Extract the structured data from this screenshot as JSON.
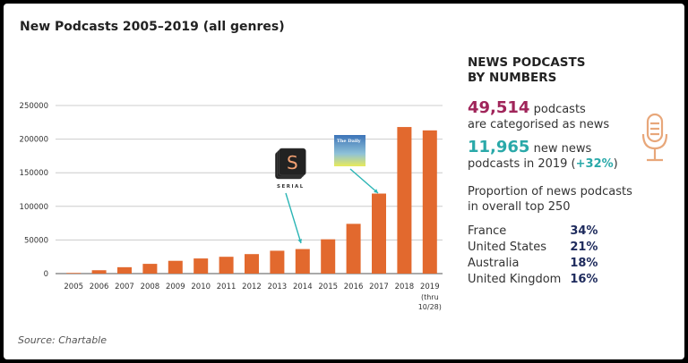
{
  "title": "New Podcasts 2005–2019 (all genres)",
  "source": "Source: Chartable",
  "colors": {
    "bar": "#e2692e",
    "arrow": "#2bb5b5",
    "magenta": "#a0255a",
    "teal": "#2aa9a9",
    "navy": "#1d2a5c",
    "mic": "#e8a77a"
  },
  "chart_data": {
    "type": "bar",
    "title": "New Podcasts 2005–2019 (all genres)",
    "categories": [
      "2005",
      "2006",
      "2007",
      "2008",
      "2009",
      "2010",
      "2011",
      "2012",
      "2013",
      "2014",
      "2015",
      "2016",
      "2017",
      "2018",
      "2019"
    ],
    "category_sublabels": {
      "2019": [
        "(thru",
        "10/28)"
      ]
    },
    "values": [
      1000,
      5000,
      9500,
      14500,
      19000,
      22500,
      25000,
      29000,
      34000,
      36500,
      51000,
      74000,
      119000,
      218000,
      213000
    ],
    "ylim": [
      0,
      250000
    ],
    "yticks": [
      0,
      50000,
      100000,
      150000,
      200000,
      250000
    ],
    "ytick_labels": [
      "0",
      "50000",
      "100000",
      "150000",
      "200000",
      "250000"
    ],
    "grid": true,
    "annotations": [
      {
        "label": "SERIAL",
        "logo_letter": "S",
        "points_to": "2014"
      },
      {
        "label": "The Daily",
        "points_to": "2017"
      }
    ]
  },
  "side": {
    "heading1": "NEWS PODCASTS",
    "heading2": "BY NUMBERS",
    "stat1_number": "49,514",
    "stat1_text1": "podcasts",
    "stat1_text2": "are categorised as news",
    "stat2_number": "11,965",
    "stat2_text1": "new news",
    "stat2_text2a": "podcasts in 2019 (",
    "stat2_pct": "+32%",
    "stat2_text2b": ")",
    "prop1": "Proportion of news podcasts",
    "prop2": "in overall top 250",
    "countries": [
      {
        "name": "France",
        "pct": "34%"
      },
      {
        "name": "United States",
        "pct": "21%"
      },
      {
        "name": "Australia",
        "pct": "18%"
      },
      {
        "name": "United Kingdom",
        "pct": "16%"
      }
    ]
  }
}
